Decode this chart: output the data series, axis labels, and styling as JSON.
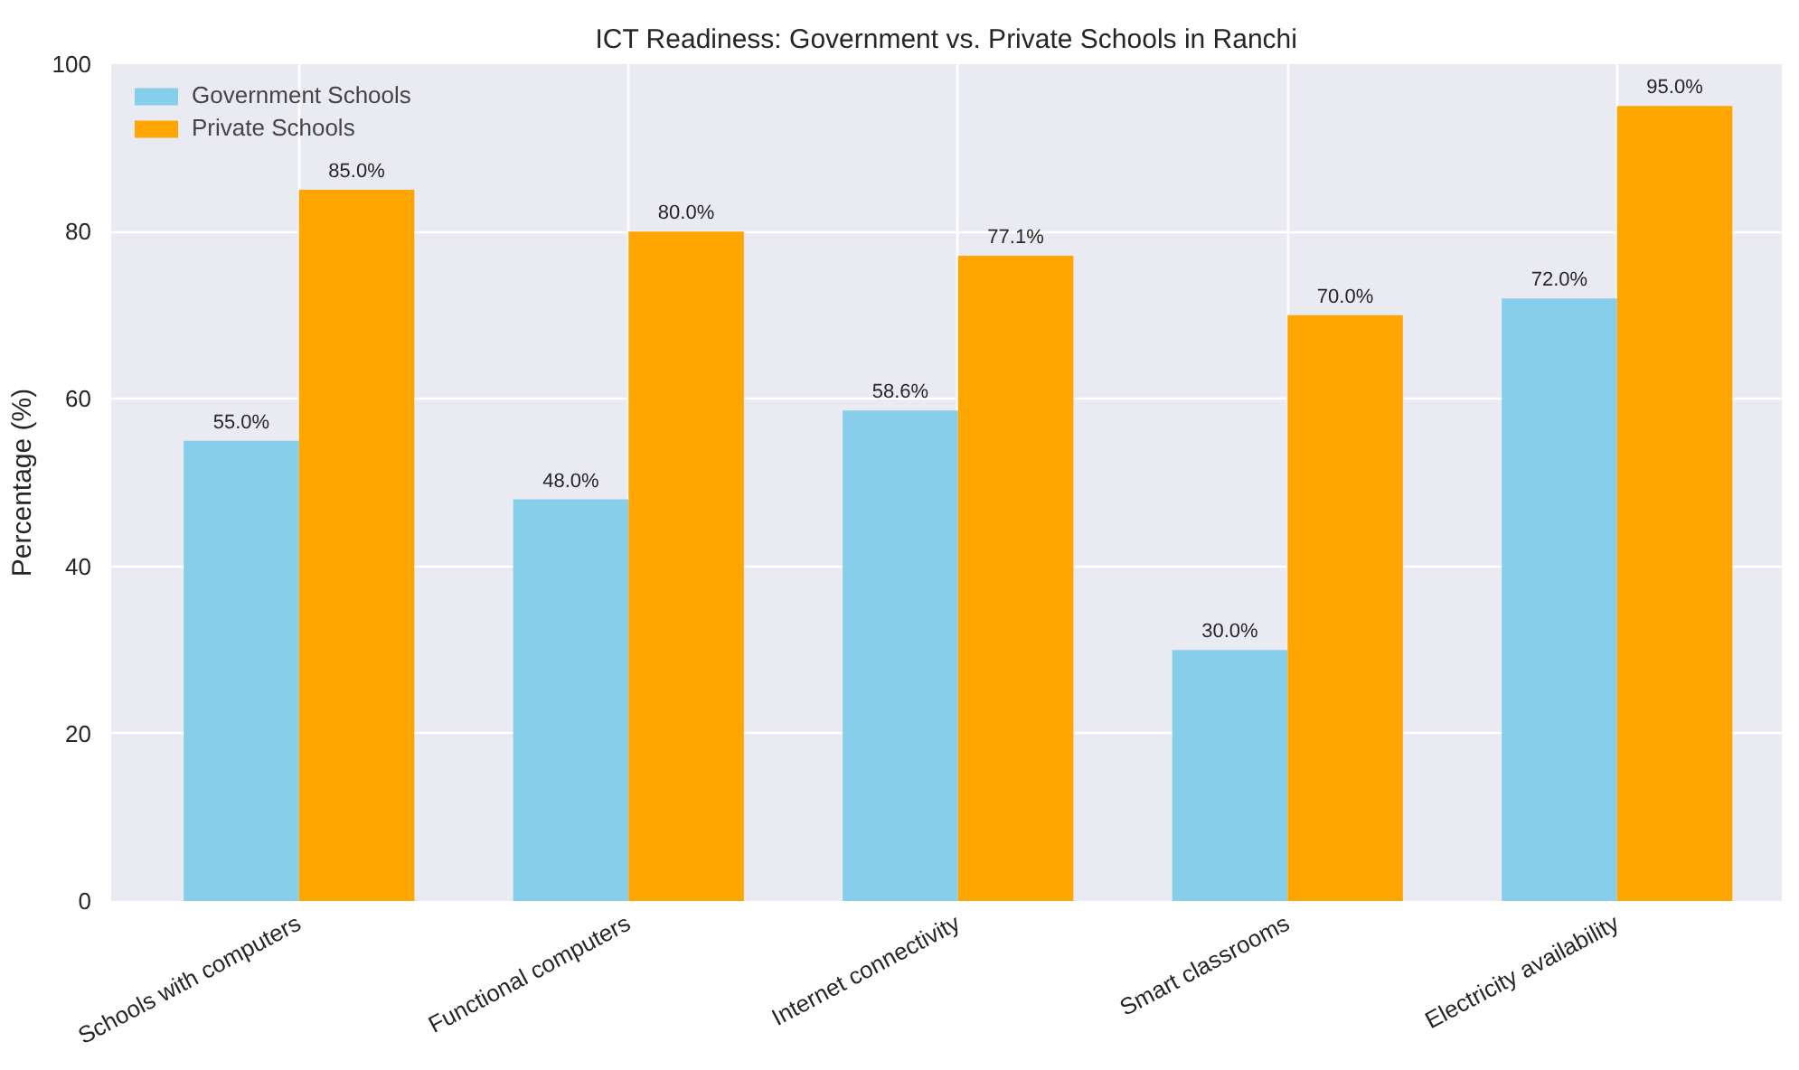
{
  "chart_data": {
    "type": "bar",
    "title": "ICT Readiness: Government vs. Private Schools in Ranchi",
    "ylabel": "Percentage (%)",
    "categories": [
      "Schools with computers",
      "Functional computers",
      "Internet connectivity",
      "Smart classrooms",
      "Electricity availability"
    ],
    "series": [
      {
        "name": "Government Schools",
        "color": "#87ceeb",
        "values": [
          55.0,
          48.0,
          58.6,
          30.0,
          72.0
        ],
        "value_labels": [
          "55.0%",
          "48.0%",
          "58.6%",
          "30.0%",
          "72.0%"
        ]
      },
      {
        "name": "Private Schools",
        "color": "#ffa500",
        "values": [
          85.0,
          80.0,
          77.1,
          70.0,
          95.0
        ],
        "value_labels": [
          "85.0%",
          "80.0%",
          "77.1%",
          "70.0%",
          "95.0%"
        ]
      }
    ],
    "ylim": [
      0,
      100
    ],
    "yticks": [
      0,
      20,
      40,
      60,
      80,
      100
    ],
    "grid": true,
    "legend": "top left"
  }
}
